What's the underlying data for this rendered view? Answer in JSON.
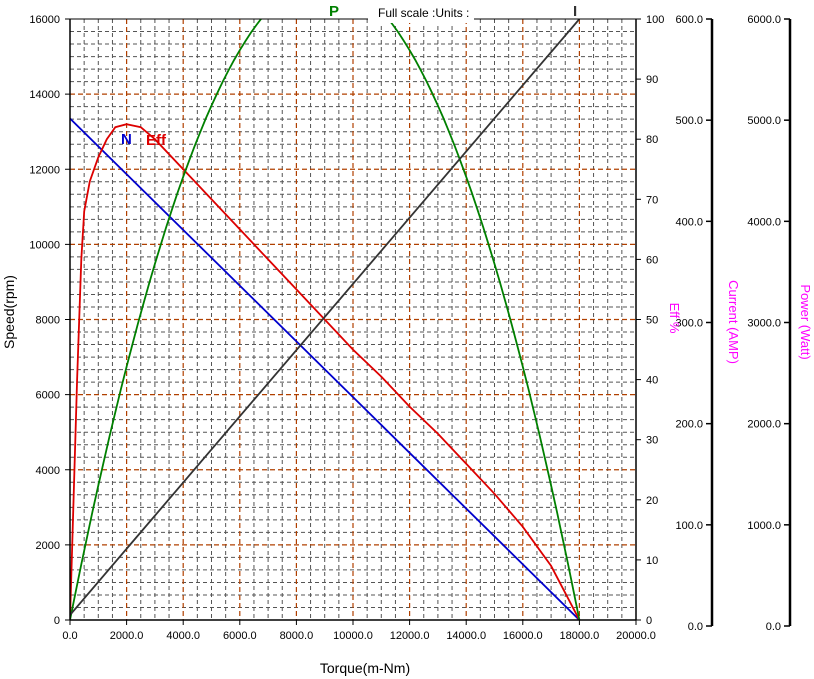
{
  "chart_data": {
    "type": "line",
    "header_note": "Full scale :Units :",
    "xlabel": "Torque(m-Nm)",
    "ylabel_left": "Speed(rpm)",
    "x_ticks": [
      "0.0",
      "2000.0",
      "4000.0",
      "6000.0",
      "8000.0",
      "10000.0",
      "12000.0",
      "14000.0",
      "16000.0",
      "18000.0",
      "20000.0"
    ],
    "xlim": [
      0,
      20000
    ],
    "speed_axis": {
      "ticks": [
        "0",
        "2000",
        "4000",
        "6000",
        "8000",
        "10000",
        "12000",
        "14000",
        "16000"
      ],
      "range": [
        0,
        16000
      ]
    },
    "eff_axis": {
      "label": "Eff %",
      "ticks": [
        "0",
        "10",
        "20",
        "30",
        "40",
        "50",
        "60",
        "70",
        "80",
        "90",
        "100"
      ],
      "range": [
        0,
        100
      ]
    },
    "current_axis": {
      "label": "Current (AMP)",
      "ticks": [
        "0.0",
        "100.0",
        "200.0",
        "300.0",
        "400.0",
        "500.0",
        "600.0"
      ],
      "range": [
        0,
        600
      ]
    },
    "power_axis": {
      "label": "Power (Watt)",
      "ticks": [
        "0.0",
        "1000.0",
        "2000.0",
        "3000.0",
        "4000.0",
        "5000.0",
        "6000.0"
      ],
      "range": [
        0,
        6000
      ]
    },
    "grid": true,
    "series": [
      {
        "name": "N",
        "axis": "speed",
        "color": "#0000cc",
        "x": [
          0,
          18000
        ],
        "y": [
          13350,
          0
        ]
      },
      {
        "name": "Eff",
        "axis": "eff",
        "color": "#dd0000",
        "x": [
          0,
          250,
          400,
          500,
          700,
          1000,
          1300,
          1600,
          2000,
          2500,
          3000,
          4000,
          5000,
          6000,
          7000,
          8000,
          9000,
          10000,
          11000,
          12000,
          13000,
          14000,
          15000,
          16000,
          17000,
          18000
        ],
        "y": [
          0,
          40,
          60,
          68,
          73,
          77,
          80,
          82,
          82.5,
          82,
          80,
          75,
          70,
          65,
          60,
          55,
          50,
          45,
          40.5,
          35.5,
          31,
          26,
          21,
          15.5,
          9,
          0
        ]
      },
      {
        "name": "P",
        "axis": "power",
        "color": "#008000",
        "x": [
          0,
          1000,
          2000,
          3000,
          4000,
          5000,
          6000,
          7000,
          8000,
          9000,
          10000,
          11000,
          12000,
          13000,
          14000,
          15000,
          16000,
          17000,
          18000
        ],
        "y": [
          0,
          1163,
          2210,
          3140,
          3953,
          4651,
          5233,
          5698,
          6047,
          6280,
          6396,
          6396,
          6280,
          6047,
          5698,
          5233,
          4651,
          3953,
          0
        ]
      },
      {
        "name": "I",
        "axis": "current",
        "color": "#333333",
        "x": [
          0,
          18000
        ],
        "y": [
          5,
          600
        ]
      }
    ]
  }
}
